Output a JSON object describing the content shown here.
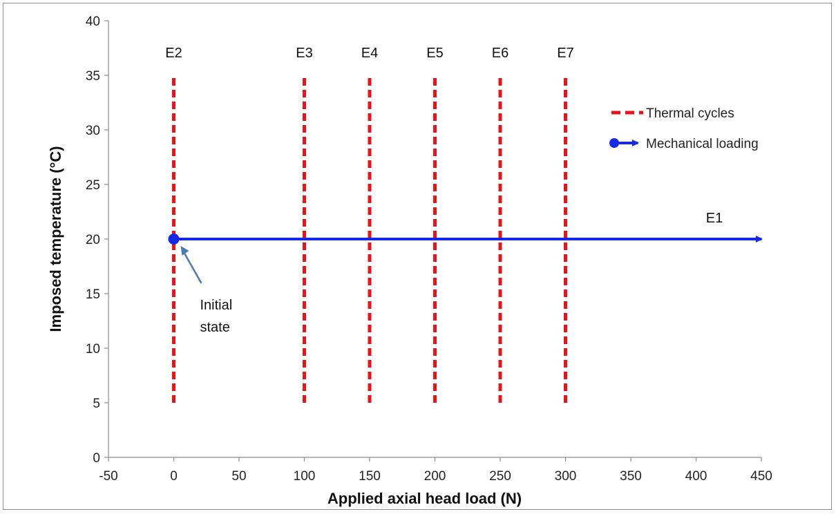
{
  "chart_data": {
    "type": "line",
    "xlabel": "Applied axial head load (N)",
    "ylabel": "Imposed temperature (°C)",
    "xlim": [
      -50,
      450
    ],
    "ylim": [
      0,
      40
    ],
    "xticks": [
      -50,
      0,
      50,
      100,
      150,
      200,
      250,
      300,
      350,
      400,
      450
    ],
    "yticks": [
      0,
      5,
      10,
      15,
      20,
      25,
      30,
      35,
      40
    ],
    "grid": false,
    "legend_position": "right",
    "series": [
      {
        "name": "Thermal cycles",
        "style": "dashed",
        "color": "#e8141c",
        "segments": [
          {
            "label": "E2",
            "x": [
              0,
              0
            ],
            "y": [
              5,
              35
            ]
          },
          {
            "label": "E3",
            "x": [
              100,
              100
            ],
            "y": [
              5,
              35
            ]
          },
          {
            "label": "E4",
            "x": [
              150,
              150
            ],
            "y": [
              5,
              35
            ]
          },
          {
            "label": "E5",
            "x": [
              200,
              200
            ],
            "y": [
              5,
              35
            ]
          },
          {
            "label": "E6",
            "x": [
              250,
              250
            ],
            "y": [
              5,
              35
            ]
          },
          {
            "label": "E7",
            "x": [
              300,
              300
            ],
            "y": [
              5,
              35
            ]
          }
        ]
      },
      {
        "name": "Mechanical loading",
        "style": "solid-arrow",
        "color": "#1428e6",
        "segments": [
          {
            "label": "E1",
            "x": [
              0,
              450
            ],
            "y": [
              20,
              20
            ]
          }
        ]
      }
    ],
    "annotations": [
      {
        "text_lines": [
          "Initial",
          "state"
        ],
        "points_to": [
          0,
          20
        ]
      }
    ]
  }
}
